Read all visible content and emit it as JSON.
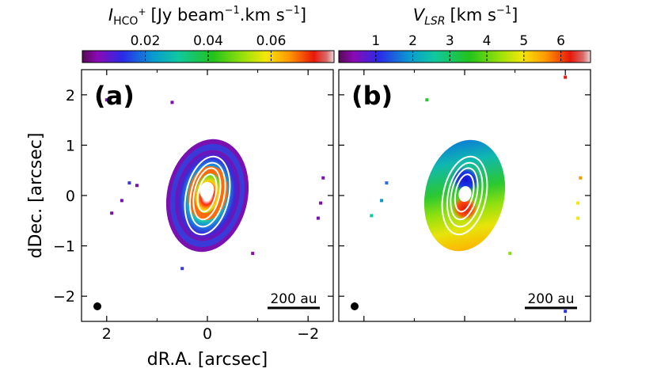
{
  "chart_data": [
    {
      "type": "heatmap",
      "panel_label": "(a)",
      "quantity": "integrated intensity (moment 0)",
      "colorbar": {
        "label_main": "I",
        "label_sub": "HCO",
        "label_sup": "+",
        "label_unit": "[Jy beam",
        "label_unit_exp": "−1",
        "label_unit_tail": ".km s",
        "label_unit_exp2": "−1",
        "label_close": "]",
        "range": [
          0.0,
          0.08
        ],
        "ticks": [
          0.02,
          0.04,
          0.06
        ],
        "tick_labels": [
          "0.02",
          "0.04",
          "0.06"
        ]
      },
      "xlabel": "dR.A. [arcsec]",
      "ylabel": "dDec. [arcsec]",
      "xlim": [
        2.5,
        -2.5
      ],
      "ylim": [
        -2.5,
        2.5
      ],
      "xticks": [
        2,
        0,
        -2
      ],
      "xtick_labels": [
        "2",
        "0",
        "−2"
      ],
      "yticks": [
        2,
        1,
        0,
        -1,
        -2
      ],
      "ytick_labels": [
        "2",
        "1",
        "0",
        "−1",
        "−2"
      ],
      "emission": {
        "center": [
          0.0,
          0.0
        ],
        "semi_major": 1.1,
        "semi_minor": 0.78,
        "position_angle_deg": 12,
        "ring_radius": 0.35,
        "cavity_radius": 0.12,
        "peak_value": 0.075
      },
      "contours": {
        "center": [
          0.0,
          0.0
        ],
        "semi_axes": [
          [
            0.42,
            0.78
          ],
          [
            0.33,
            0.65
          ],
          [
            0.25,
            0.52
          ],
          [
            0.17,
            0.38
          ]
        ],
        "position_angle_deg": 12,
        "color": "#ffffff"
      },
      "beam": {
        "position": [
          2.2,
          -2.2
        ]
      },
      "scalebar_label": "200 au"
    },
    {
      "type": "heatmap",
      "panel_label": "(b)",
      "quantity": "velocity field (moment 1)",
      "colorbar": {
        "label_main": "V",
        "label_sub": "LSR",
        "label_unit": "[km s",
        "label_unit_exp": "−1",
        "label_close": "]",
        "range": [
          0.0,
          6.8
        ],
        "ticks": [
          1,
          2,
          3,
          4,
          5,
          6
        ],
        "tick_labels": [
          "1",
          "2",
          "3",
          "4",
          "5",
          "6"
        ]
      },
      "xlim": [
        2.5,
        -2.5
      ],
      "ylim": [
        -2.5,
        2.5
      ],
      "systemic_velocity": 3.4,
      "velocity_gradient": "blue (≈1 km/s) to the north, red (≈6 km/s) to the south",
      "emission": {
        "center": [
          0.0,
          0.0
        ],
        "semi_major": 1.1,
        "semi_minor": 0.78,
        "position_angle_deg": 12
      },
      "contours": {
        "center": [
          0.0,
          0.0
        ],
        "semi_axes": [
          [
            0.42,
            0.78
          ],
          [
            0.33,
            0.65
          ],
          [
            0.25,
            0.52
          ],
          [
            0.17,
            0.38
          ]
        ],
        "position_angle_deg": 12,
        "color": "#ffffff"
      },
      "beam": {
        "position": [
          2.2,
          -2.2
        ]
      },
      "scalebar_label": "200 au"
    }
  ]
}
